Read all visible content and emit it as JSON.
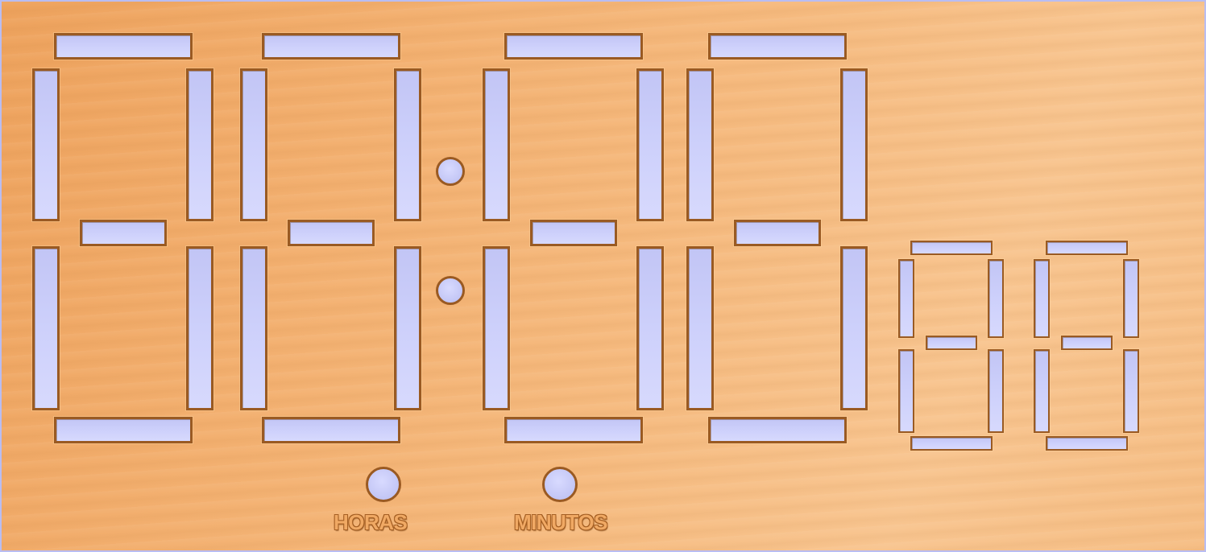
{
  "panel": {
    "colors": {
      "wood": "#f3b070",
      "cutout": "#c6c9f7",
      "edge": "#9a5a22"
    }
  },
  "buttons": {
    "hours_label": "HORAS",
    "minutes_label": "MINUTOS"
  },
  "display": {
    "main_digits": 4,
    "small_digits": 2,
    "segments_per_digit": 7,
    "colon_dots": 2
  }
}
